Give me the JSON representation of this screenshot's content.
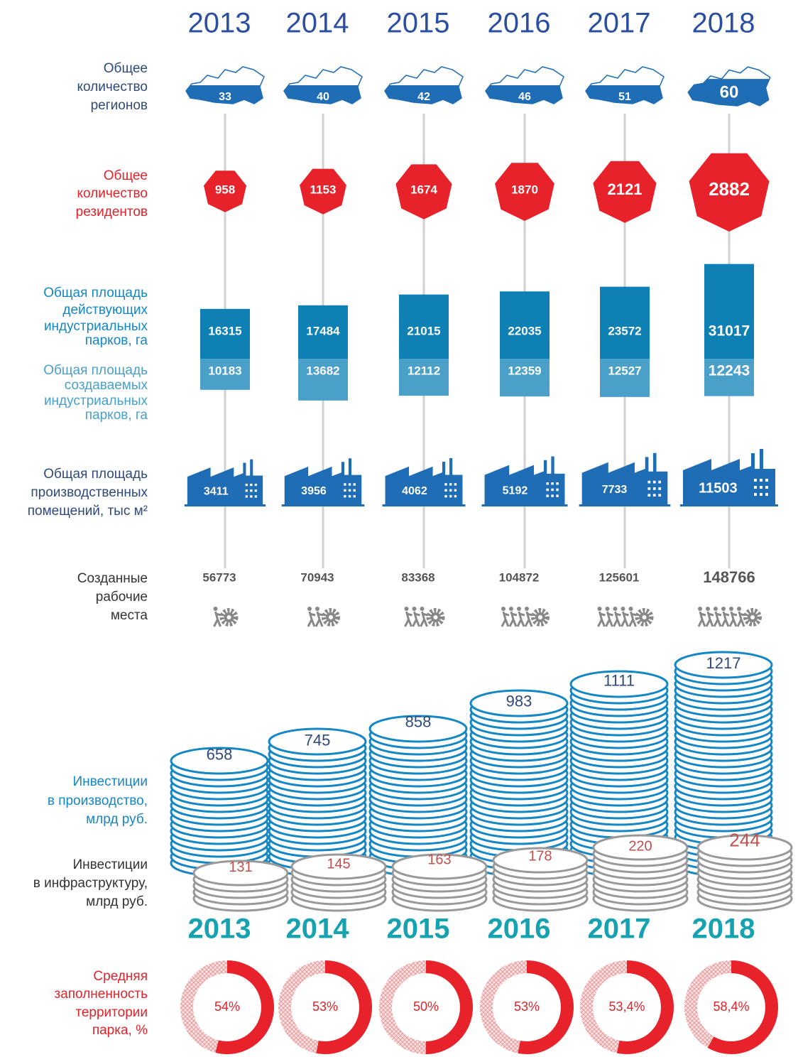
{
  "years": [
    "2013",
    "2014",
    "2015",
    "2016",
    "2017",
    "2018"
  ],
  "regions": {
    "label": [
      "Общее",
      "количество",
      "регионов"
    ],
    "values": [
      33,
      40,
      42,
      46,
      51,
      60
    ]
  },
  "residents": {
    "label": [
      "Общее",
      "количество",
      "резидентов"
    ],
    "values": [
      958,
      1153,
      1674,
      1870,
      2121,
      2882
    ]
  },
  "area_active": {
    "label": [
      "Общая площадь",
      "действующих",
      "индустриальных",
      "парков, га"
    ],
    "values": [
      16315,
      17484,
      21015,
      22035,
      23572,
      31017
    ]
  },
  "area_created": {
    "label": [
      "Общая площадь",
      "создаваемых",
      "индустриальных",
      "парков, га"
    ],
    "values": [
      10183,
      13682,
      12112,
      12359,
      12527,
      12243
    ]
  },
  "production_space": {
    "label": [
      "Общая площадь",
      "производственных",
      "помещений, тыс м²"
    ],
    "values": [
      3411,
      3956,
      4062,
      5192,
      7733,
      11503
    ]
  },
  "jobs": {
    "label": [
      "Созданные",
      "рабочие",
      "места"
    ],
    "values": [
      56773,
      70943,
      83368,
      104872,
      125601,
      148766
    ]
  },
  "invest_production": {
    "label": [
      "Инвестиции",
      "в производство,",
      "млрд руб."
    ],
    "values": [
      658,
      745,
      858,
      983,
      1111,
      1217
    ]
  },
  "invest_infrastructure": {
    "label": [
      "Инвестиции",
      "в инфраструктуру,",
      "млрд руб."
    ],
    "values": [
      131,
      145,
      163,
      178,
      220,
      244
    ]
  },
  "occupancy": {
    "label": [
      "Средняя",
      "заполненность",
      "территории",
      "парка, %"
    ],
    "values": [
      54,
      53,
      50,
      53,
      53.4,
      58.4
    ],
    "value_labels": [
      "54%",
      "53%",
      "50%",
      "53%",
      "53,4%",
      "58,4%"
    ]
  }
}
